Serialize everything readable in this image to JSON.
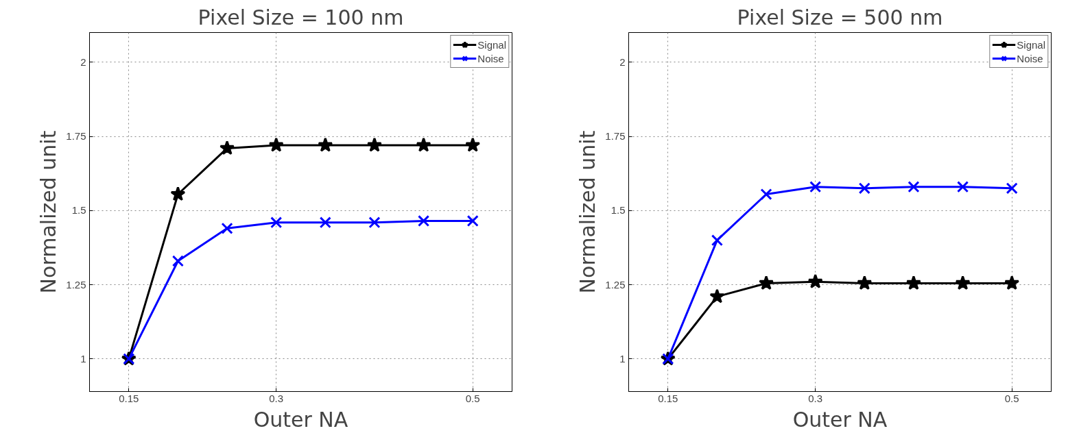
{
  "chart_data": [
    {
      "type": "line",
      "title": "Pixel Size = 100 nm",
      "xlabel": "Outer NA",
      "ylabel": "Normalized unit",
      "x": [
        0.15,
        0.2,
        0.25,
        0.3,
        0.35,
        0.4,
        0.45,
        0.5
      ],
      "series": [
        {
          "name": "Signal",
          "color": "#000000",
          "marker": "star",
          "values": [
            1,
            1.555,
            1.71,
            1.72,
            1.72,
            1.72,
            1.72,
            1.72
          ]
        },
        {
          "name": "Noise",
          "color": "#0000ff",
          "marker": "cross",
          "values": [
            1,
            1.33,
            1.44,
            1.46,
            1.46,
            1.46,
            1.465,
            1.465
          ]
        }
      ],
      "xlim": [
        0.11,
        0.54
      ],
      "ylim": [
        0.89,
        2.1
      ],
      "xticks": [
        0.15,
        0.3,
        0.5
      ],
      "yticks": [
        1,
        1.25,
        1.5,
        1.75,
        2
      ],
      "grid": true,
      "legend": "top right",
      "line_style": "solid"
    },
    {
      "type": "line",
      "title": "Pixel Size = 500 nm",
      "xlabel": "Outer NA",
      "ylabel": "Normalized unit",
      "x": [
        0.15,
        0.2,
        0.25,
        0.3,
        0.35,
        0.4,
        0.45,
        0.5
      ],
      "series": [
        {
          "name": "Signal",
          "color": "#000000",
          "marker": "star",
          "values": [
            1,
            1.21,
            1.255,
            1.26,
            1.255,
            1.255,
            1.255,
            1.255
          ]
        },
        {
          "name": "Noise",
          "color": "#0000ff",
          "marker": "cross",
          "values": [
            1,
            1.4,
            1.555,
            1.58,
            1.575,
            1.58,
            1.58,
            1.575
          ]
        }
      ],
      "xlim": [
        0.11,
        0.54
      ],
      "ylim": [
        0.89,
        2.1
      ],
      "xticks": [
        0.15,
        0.3,
        0.5
      ],
      "yticks": [
        1,
        1.25,
        1.5,
        1.75,
        2
      ],
      "grid": true,
      "legend": "top right",
      "line_style": "solid"
    }
  ]
}
